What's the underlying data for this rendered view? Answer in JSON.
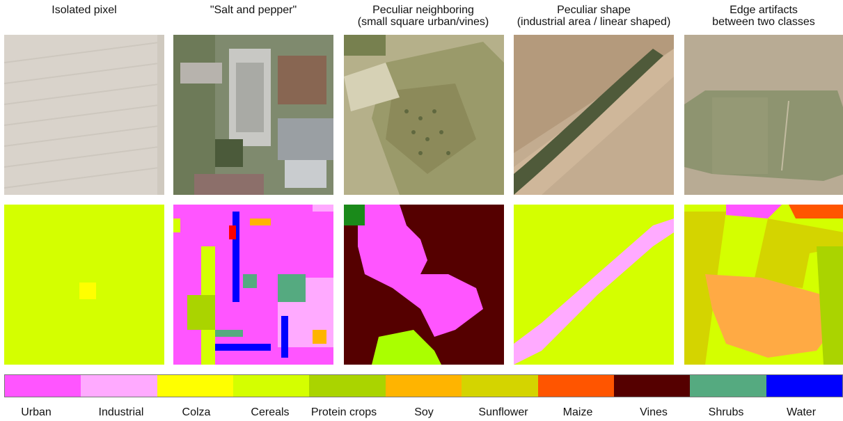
{
  "columns": [
    {
      "title_line1": "Isolated pixel",
      "title_line2": ""
    },
    {
      "title_line1": "\"Salt and pepper\"",
      "title_line2": ""
    },
    {
      "title_line1": "Peculiar neighboring",
      "title_line2": "(small square urban/vines)"
    },
    {
      "title_line1": "Peculiar shape",
      "title_line2": "(industrial area / linear shaped)"
    },
    {
      "title_line1": "Edge artifacts",
      "title_line2": "between two classes"
    }
  ],
  "legend": [
    {
      "label": "Urban",
      "color": "#ff55ff"
    },
    {
      "label": "Industrial",
      "color": "#ffaaff"
    },
    {
      "label": "Colza",
      "color": "#ffff00"
    },
    {
      "label": "Cereals",
      "color": "#d4ff00"
    },
    {
      "label": "Protein crops",
      "color": "#aad400"
    },
    {
      "label": "Soy",
      "color": "#ffb400"
    },
    {
      "label": "Sunflower",
      "color": "#d4d400"
    },
    {
      "label": "Maize",
      "color": "#ff5500"
    },
    {
      "label": "Vines",
      "color": "#550000"
    },
    {
      "label": "Shrubs",
      "color": "#55aa80"
    },
    {
      "label": "Water",
      "color": "#0000ff"
    }
  ]
}
